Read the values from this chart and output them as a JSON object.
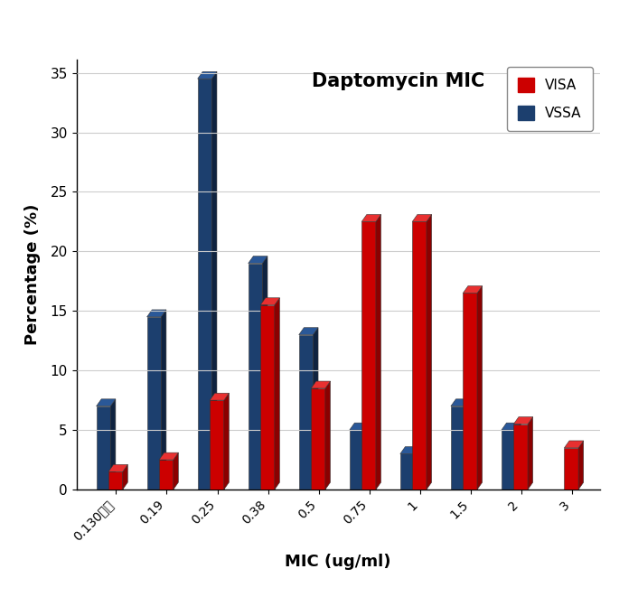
{
  "categories": [
    "0.130이하",
    "0.19",
    "0.25",
    "0.38",
    "0.5",
    "0.75",
    "1",
    "1.5",
    "2",
    "3"
  ],
  "VISA": [
    1.5,
    2.5,
    7.5,
    15.5,
    8.5,
    22.5,
    22.5,
    16.5,
    5.5,
    3.5
  ],
  "VSSA": [
    7.0,
    14.5,
    34.5,
    19.0,
    13.0,
    5.0,
    3.0,
    7.0,
    5.0,
    0.0
  ],
  "visa_color_front": "#CC0000",
  "visa_color_side": "#8B0000",
  "visa_color_top": "#E83030",
  "vssa_color_front": "#1C3F6E",
  "vssa_color_side": "#0F2340",
  "vssa_color_top": "#2A5898",
  "title": "Daptomycin MIC",
  "xlabel": "MIC (ug/ml)",
  "ylabel": "Percentage (%)",
  "ylim": [
    0,
    35
  ],
  "yticks": [
    0,
    5,
    10,
    15,
    20,
    25,
    30,
    35
  ],
  "legend_labels": [
    "VISA",
    "VSSA"
  ],
  "background_color": "#FFFFFF",
  "title_fontsize": 15,
  "label_fontsize": 13
}
